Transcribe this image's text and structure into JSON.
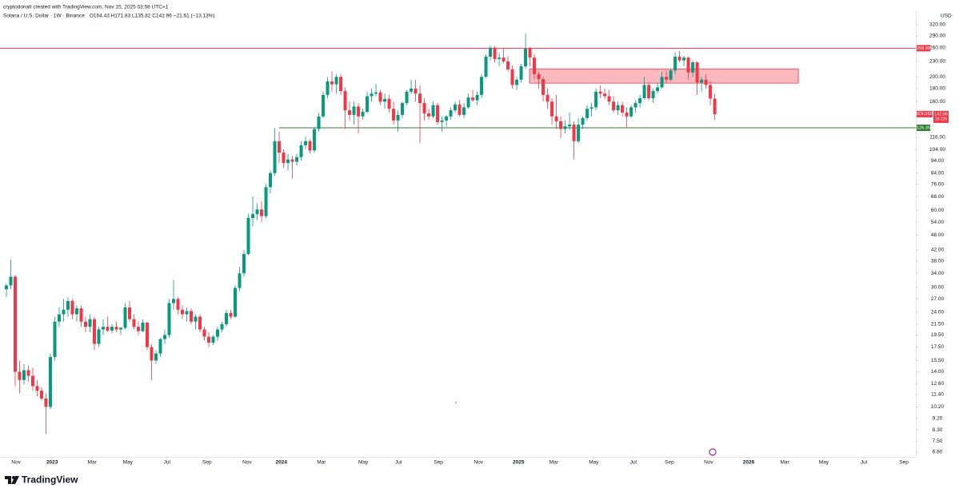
{
  "header": {
    "credit": "cryptodonalt created with TradingView.com, Nov 15, 2025 03:58 UTC+1"
  },
  "branding": "TradingView",
  "chart_data": {
    "type": "candlestick",
    "title": "Solana / U.S. Dollar · 1W · Binance",
    "ohlc_label": "O164.43 H171.83 L135.82 C142.96 −21.61 (−13.13%)",
    "currency": "USD",
    "symbol": "SOLUSD",
    "countdown": "1d 22h",
    "log_scale": true,
    "grid": false,
    "up_color": "#089981",
    "down_color": "#f23645",
    "xlim": [
      -1.45,
      206.7
    ],
    "ylim": [
      6.5,
      327
    ],
    "xticks": [
      {
        "value": 2.2,
        "label": "Nov"
      },
      {
        "value": 10.4,
        "label": "2023"
      },
      {
        "value": 19.5,
        "label": "Mar"
      },
      {
        "value": 27.6,
        "label": "May"
      },
      {
        "value": 36.5,
        "label": "Jul"
      },
      {
        "value": 45.6,
        "label": "Sep"
      },
      {
        "value": 54.7,
        "label": "Nov"
      },
      {
        "value": 62.5,
        "label": "2024"
      },
      {
        "value": 71.6,
        "label": "Mar"
      },
      {
        "value": 81.1,
        "label": "May"
      },
      {
        "value": 89.1,
        "label": "Jul"
      },
      {
        "value": 98.2,
        "label": "Sep"
      },
      {
        "value": 107.3,
        "label": "Nov"
      },
      {
        "value": 116.4,
        "label": "2025"
      },
      {
        "value": 124.4,
        "label": "Mar"
      },
      {
        "value": 133.5,
        "label": "May"
      },
      {
        "value": 142.5,
        "label": "Jul"
      },
      {
        "value": 150.7,
        "label": "Sep"
      },
      {
        "value": 159.6,
        "label": "Nov"
      },
      {
        "value": 168.7,
        "label": "2026"
      },
      {
        "value": 176.9,
        "label": "Mar"
      },
      {
        "value": 185.8,
        "label": "May"
      },
      {
        "value": 194.9,
        "label": "Jul"
      },
      {
        "value": 204.0,
        "label": "Sep"
      }
    ],
    "yticks": [
      {
        "value": 320,
        "label": "320.00"
      },
      {
        "value": 290,
        "label": "290.00"
      },
      {
        "value": 260,
        "label": "260.00"
      },
      {
        "value": 230,
        "label": "230.00"
      },
      {
        "value": 200,
        "label": "200.00"
      },
      {
        "value": 180,
        "label": "180.00"
      },
      {
        "value": 160,
        "label": "160.00"
      },
      {
        "value": 116,
        "label": "116.00"
      },
      {
        "value": 104,
        "label": "104.00"
      },
      {
        "value": 94,
        "label": "94.00"
      },
      {
        "value": 84,
        "label": "84.00"
      },
      {
        "value": 76,
        "label": "76.00"
      },
      {
        "value": 68,
        "label": "68.00"
      },
      {
        "value": 60,
        "label": "60.00"
      },
      {
        "value": 54,
        "label": "54.00"
      },
      {
        "value": 48,
        "label": "48.00"
      },
      {
        "value": 42,
        "label": "42.00"
      },
      {
        "value": 38,
        "label": "38.00"
      },
      {
        "value": 34,
        "label": "34.00"
      },
      {
        "value": 30,
        "label": "30.00"
      },
      {
        "value": 27,
        "label": "27.00"
      },
      {
        "value": 24,
        "label": "24.00"
      },
      {
        "value": 21.5,
        "label": "21.50"
      },
      {
        "value": 19.5,
        "label": "19.50"
      },
      {
        "value": 17.5,
        "label": "17.50"
      },
      {
        "value": 15.5,
        "label": "15.50"
      },
      {
        "value": 14,
        "label": "14.00"
      },
      {
        "value": 12.6,
        "label": "12.60"
      },
      {
        "value": 11.4,
        "label": "11.40"
      },
      {
        "value": 10.2,
        "label": "10.20"
      },
      {
        "value": 9.2,
        "label": "9.20"
      },
      {
        "value": 8.3,
        "label": "8.30"
      },
      {
        "value": 7.5,
        "label": "7.50"
      },
      {
        "value": 6.8,
        "label": "6.80"
      }
    ],
    "levels": [
      {
        "value": 258.99,
        "color": "#f23645",
        "start": -1.45
      },
      {
        "value": 126.36,
        "color": "#2e7d32",
        "start": 62
      }
    ],
    "zone": {
      "low": 189,
      "high": 215,
      "start": 118.9,
      "end": 180,
      "color": "#f23645"
    },
    "candles": [
      [
        29.5,
        31,
        27.5,
        30.5
      ],
      [
        30.5,
        38.5,
        29.5,
        33
      ],
      [
        33,
        33.5,
        12.3,
        14
      ],
      [
        14,
        15.5,
        11.5,
        13
      ],
      [
        13,
        15,
        12.5,
        14.2
      ],
      [
        14.2,
        14.8,
        12.8,
        13.5
      ],
      [
        13.5,
        14.5,
        11.8,
        12.3
      ],
      [
        12.3,
        13,
        11.2,
        11.8
      ],
      [
        11.8,
        12.2,
        10.8,
        11
      ],
      [
        11,
        11.5,
        8,
        10.2
      ],
      [
        10.2,
        16.5,
        10,
        16
      ],
      [
        16,
        23,
        15.5,
        22
      ],
      [
        22,
        25,
        21,
        23.5
      ],
      [
        23.5,
        27,
        22,
        24.5
      ],
      [
        24.5,
        27.5,
        23,
        26.5
      ],
      [
        26.5,
        27,
        22.5,
        23.5
      ],
      [
        23.5,
        25.5,
        22,
        24.8
      ],
      [
        24.8,
        25.5,
        21,
        22
      ],
      [
        22,
        23,
        20,
        21
      ],
      [
        21,
        23.5,
        20,
        22.5
      ],
      [
        22.5,
        23,
        17,
        18
      ],
      [
        18,
        21,
        17.5,
        20.5
      ],
      [
        20.5,
        22.5,
        19.5,
        21
      ],
      [
        21,
        23,
        20,
        20.3
      ],
      [
        20.3,
        21.5,
        19.8,
        21
      ],
      [
        21,
        22,
        20,
        20.5
      ],
      [
        20.5,
        21,
        19.5,
        20.8
      ],
      [
        20.8,
        26,
        20.5,
        25
      ],
      [
        25,
        26.5,
        22,
        22.5
      ],
      [
        22.5,
        23.5,
        20.5,
        21
      ],
      [
        21,
        22,
        19.5,
        20.2
      ],
      [
        20.2,
        22.5,
        20,
        21.8
      ],
      [
        21.8,
        22,
        17,
        17.5
      ],
      [
        17.5,
        18,
        13,
        15.5
      ],
      [
        15.5,
        17,
        15,
        16.5
      ],
      [
        16.5,
        19,
        16,
        18.8
      ],
      [
        18.8,
        20.5,
        18,
        19.5
      ],
      [
        19.5,
        27,
        19,
        26
      ],
      [
        26,
        32,
        24.5,
        27
      ],
      [
        27,
        27.5,
        23.5,
        24.5
      ],
      [
        24.5,
        25.5,
        22.5,
        23.5
      ],
      [
        23.5,
        25,
        22,
        24.2
      ],
      [
        24.2,
        24.8,
        21.5,
        22
      ],
      [
        22,
        23.5,
        20.5,
        23
      ],
      [
        23,
        23.5,
        20,
        20.5
      ],
      [
        20.5,
        21,
        18.5,
        19.2
      ],
      [
        19.2,
        20,
        17.5,
        18.2
      ],
      [
        18.2,
        19.5,
        17.8,
        19.2
      ],
      [
        19.2,
        21,
        18.5,
        20.5
      ],
      [
        20.5,
        22,
        20,
        21.5
      ],
      [
        21.5,
        24.5,
        21,
        23.8
      ],
      [
        23.8,
        24.5,
        22.5,
        23
      ],
      [
        23,
        30.5,
        22.8,
        29.8
      ],
      [
        29.8,
        36,
        29,
        34
      ],
      [
        34,
        42,
        33,
        40.5
      ],
      [
        40.5,
        58,
        40,
        56
      ],
      [
        56,
        68,
        52,
        58
      ],
      [
        58,
        64,
        55,
        60.5
      ],
      [
        60.5,
        65,
        54,
        57
      ],
      [
        57,
        76,
        56,
        74
      ],
      [
        74,
        86,
        70,
        84
      ],
      [
        84,
        126,
        82,
        112
      ],
      [
        112,
        122,
        92,
        101
      ],
      [
        101,
        104,
        88,
        92
      ],
      [
        92,
        100,
        86,
        95
      ],
      [
        95,
        98,
        80,
        93
      ],
      [
        93,
        100,
        90,
        97
      ],
      [
        97,
        112,
        94,
        108
      ],
      [
        108,
        117,
        104,
        112
      ],
      [
        112,
        114,
        100,
        103
      ],
      [
        103,
        126,
        101,
        125
      ],
      [
        125,
        145,
        122,
        140
      ],
      [
        140,
        175,
        138,
        170
      ],
      [
        170,
        200,
        165,
        192
      ],
      [
        192,
        210,
        175,
        187
      ],
      [
        187,
        205,
        172,
        200
      ],
      [
        200,
        205,
        170,
        176
      ],
      [
        176,
        182,
        125,
        148
      ],
      [
        148,
        160,
        135,
        142
      ],
      [
        142,
        160,
        130,
        153
      ],
      [
        153,
        158,
        120,
        140
      ],
      [
        140,
        150,
        136,
        146
      ],
      [
        146,
        175,
        144,
        168
      ],
      [
        168,
        180,
        160,
        172
      ],
      [
        172,
        188,
        168,
        174
      ],
      [
        174,
        178,
        155,
        160
      ],
      [
        160,
        172,
        150,
        164
      ],
      [
        164,
        170,
        145,
        150
      ],
      [
        150,
        160,
        130,
        135
      ],
      [
        135,
        148,
        122,
        142
      ],
      [
        142,
        160,
        138,
        158
      ],
      [
        158,
        178,
        155,
        175
      ],
      [
        175,
        195,
        172,
        180
      ],
      [
        180,
        195,
        160,
        172
      ],
      [
        172,
        185,
        110,
        158
      ],
      [
        158,
        165,
        135,
        144
      ],
      [
        144,
        150,
        136,
        140
      ],
      [
        140,
        160,
        138,
        155
      ],
      [
        155,
        158,
        130,
        133
      ],
      [
        133,
        140,
        122,
        135
      ],
      [
        135,
        142,
        128,
        140
      ],
      [
        140,
        152,
        136,
        148
      ],
      [
        148,
        160,
        145,
        156
      ],
      [
        156,
        162,
        140,
        142
      ],
      [
        142,
        158,
        138,
        152
      ],
      [
        152,
        172,
        150,
        166
      ],
      [
        166,
        178,
        160,
        162
      ],
      [
        162,
        175,
        155,
        170
      ],
      [
        170,
        205,
        165,
        200
      ],
      [
        200,
        245,
        198,
        240
      ],
      [
        240,
        265,
        232,
        260
      ],
      [
        260,
        264,
        228,
        235
      ],
      [
        235,
        248,
        220,
        238
      ],
      [
        238,
        260,
        226,
        230
      ],
      [
        230,
        240,
        210,
        214
      ],
      [
        214,
        222,
        180,
        186
      ],
      [
        186,
        200,
        178,
        195
      ],
      [
        195,
        225,
        190,
        220
      ],
      [
        220,
        295,
        215,
        258
      ],
      [
        258,
        262,
        220,
        238
      ],
      [
        238,
        245,
        196,
        205
      ],
      [
        205,
        210,
        180,
        196
      ],
      [
        196,
        200,
        160,
        170
      ],
      [
        170,
        180,
        150,
        160
      ],
      [
        160,
        165,
        130,
        140
      ],
      [
        140,
        170,
        125,
        134
      ],
      [
        134,
        140,
        115,
        125
      ],
      [
        125,
        135,
        120,
        128
      ],
      [
        128,
        145,
        124,
        130
      ],
      [
        130,
        134,
        95,
        112
      ],
      [
        112,
        138,
        110,
        130
      ],
      [
        130,
        140,
        125,
        138
      ],
      [
        138,
        155,
        135,
        150
      ],
      [
        150,
        158,
        140,
        152
      ],
      [
        152,
        180,
        148,
        175
      ],
      [
        175,
        185,
        165,
        172
      ],
      [
        172,
        180,
        164,
        168
      ],
      [
        168,
        178,
        155,
        160
      ],
      [
        160,
        168,
        145,
        148
      ],
      [
        148,
        160,
        142,
        155
      ],
      [
        155,
        160,
        140,
        145
      ],
      [
        145,
        152,
        126,
        140
      ],
      [
        140,
        155,
        138,
        152
      ],
      [
        152,
        162,
        145,
        158
      ],
      [
        158,
        170,
        152,
        165
      ],
      [
        165,
        200,
        163,
        186
      ],
      [
        186,
        190,
        162,
        165
      ],
      [
        165,
        180,
        158,
        176
      ],
      [
        176,
        190,
        172,
        182
      ],
      [
        182,
        210,
        180,
        200
      ],
      [
        200,
        210,
        190,
        195
      ],
      [
        195,
        215,
        192,
        212
      ],
      [
        212,
        250,
        205,
        240
      ],
      [
        240,
        253,
        228,
        232
      ],
      [
        232,
        242,
        220,
        238
      ],
      [
        238,
        240,
        195,
        208
      ],
      [
        208,
        232,
        200,
        228
      ],
      [
        228,
        230,
        170,
        190
      ],
      [
        190,
        200,
        175,
        195
      ],
      [
        195,
        205,
        180,
        186
      ],
      [
        186,
        192,
        155,
        164.57
      ],
      [
        164.43,
        171.83,
        135.82,
        142.96
      ]
    ]
  }
}
